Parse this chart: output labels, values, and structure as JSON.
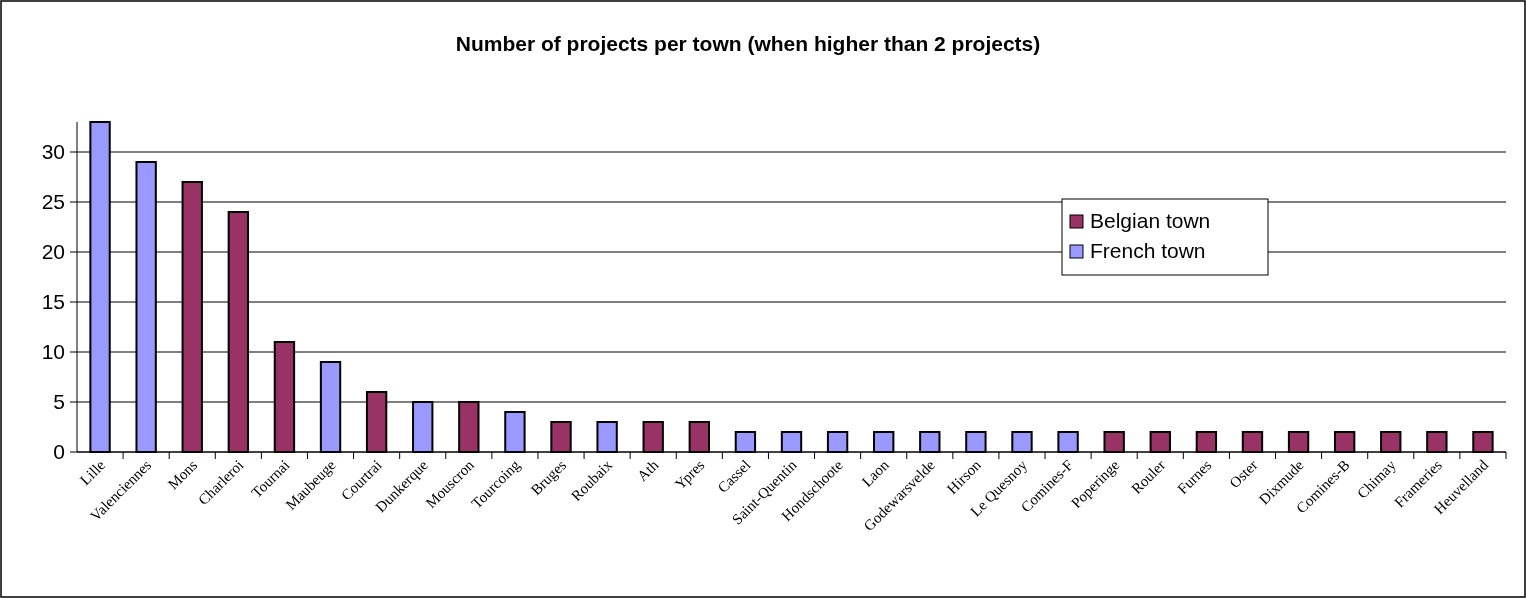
{
  "chart_data": {
    "type": "bar",
    "title": "Number of projects per town (when higher than 2 projects)",
    "categories": [
      "Lille",
      "Valenciennes",
      "Mons",
      "Charleroi",
      "Tournai",
      "Maubeuge",
      "Courtrai",
      "Dunkerque",
      "Mouscron",
      "Tourcoing",
      "Bruges",
      "Roubaix",
      "Ath",
      "Ypres",
      "Cassel",
      "Saint-Quentin",
      "Hondschoote",
      "Laon",
      "Godewarsvelde",
      "Hirson",
      "Le Quesnoy",
      "Comines-F",
      "Poperinge",
      "Rouler",
      "Furnes",
      "Oster",
      "Dixmude",
      "Comines-B",
      "Chimay",
      "Frameries",
      "Heuvelland"
    ],
    "series": [
      {
        "name": "Belgian town",
        "color": "#993366",
        "values": [
          null,
          null,
          27,
          24,
          11,
          null,
          6,
          null,
          5,
          null,
          3,
          null,
          3,
          3,
          null,
          null,
          null,
          null,
          null,
          null,
          null,
          null,
          2,
          2,
          2,
          2,
          2,
          2,
          2,
          2,
          2
        ]
      },
      {
        "name": "French town",
        "color": "#9999ff",
        "values": [
          33,
          29,
          null,
          null,
          null,
          9,
          null,
          5,
          null,
          4,
          null,
          3,
          null,
          null,
          2,
          2,
          2,
          2,
          2,
          2,
          2,
          2,
          null,
          null,
          null,
          null,
          null,
          null,
          null,
          null,
          null
        ]
      }
    ],
    "ylim": [
      0,
      33
    ],
    "yticks": [
      0,
      5,
      10,
      15,
      20,
      25,
      30
    ],
    "grid": "y",
    "legend": "right"
  }
}
